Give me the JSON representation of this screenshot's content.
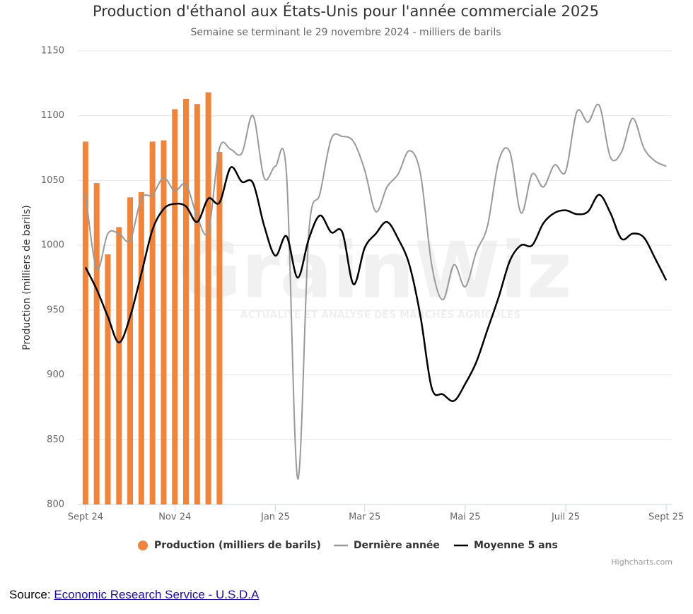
{
  "chart_data": {
    "type": "combo",
    "title": "Production d'éthanol aux États-Unis pour l'année commerciale 2025",
    "subtitle": "Semaine se terminant le 29 novembre 2024 - milliers de barils",
    "y_label": "Production (milliers de barils)",
    "categories": [
      "Sept 24",
      null,
      null,
      null,
      null,
      null,
      null,
      null,
      "Nov 24",
      null,
      null,
      null,
      null,
      null,
      null,
      null,
      null,
      "Jan 25",
      null,
      null,
      null,
      null,
      null,
      null,
      null,
      "Mar 25",
      null,
      null,
      null,
      null,
      null,
      null,
      null,
      null,
      "Mai 25",
      null,
      null,
      null,
      null,
      null,
      null,
      null,
      null,
      "Juil 25",
      null,
      null,
      null,
      null,
      null,
      null,
      null,
      null,
      "Sept 25"
    ],
    "ylim": [
      800,
      1150
    ],
    "yticks": [
      800,
      850,
      900,
      950,
      1000,
      1050,
      1100,
      1150
    ],
    "grid": true,
    "series": [
      {
        "name": "Production (milliers de barils)",
        "type": "bar",
        "color": "#f0843a",
        "values": [
          1080,
          1048,
          993,
          1014,
          1037,
          1041,
          1080,
          1081,
          1105,
          1113,
          1109,
          1118,
          1072,
          null,
          null,
          null,
          null,
          null,
          null,
          null,
          null,
          null,
          null,
          null,
          null,
          null,
          null,
          null,
          null,
          null,
          null,
          null,
          null,
          null,
          null,
          null,
          null,
          null,
          null,
          null,
          null,
          null,
          null,
          null,
          null,
          null,
          null,
          null,
          null,
          null,
          null,
          null,
          null
        ]
      },
      {
        "name": "Dernière année",
        "type": "line",
        "color": "#999999",
        "values": [
          1040,
          982,
          1009,
          1009,
          1004,
          1036,
          1039,
          1052,
          1042,
          1047,
          1022,
          1011,
          1075,
          1074,
          1071,
          1100,
          1052,
          1061,
          1055,
          820,
          1010,
          1040,
          1082,
          1084,
          1080,
          1058,
          1026,
          1045,
          1055,
          1073,
          1055,
          985,
          958,
          985,
          968,
          995,
          1015,
          1065,
          1072,
          1025,
          1055,
          1045,
          1062,
          1057,
          1103,
          1095,
          1108,
          1068,
          1072,
          1098,
          1075,
          1065,
          1061
        ]
      },
      {
        "name": "Moyenne 5 ans",
        "type": "line",
        "color": "#000000",
        "values": [
          983,
          966,
          945,
          925,
          945,
          978,
          1012,
          1028,
          1032,
          1030,
          1018,
          1036,
          1033,
          1060,
          1049,
          1048,
          1015,
          992,
          1007,
          975,
          1005,
          1023,
          1010,
          1010,
          970,
          998,
          1009,
          1018,
          1005,
          985,
          945,
          890,
          885,
          880,
          893,
          910,
          935,
          960,
          988,
          1000,
          1000,
          1017,
          1025,
          1027,
          1024,
          1026,
          1039,
          1025,
          1005,
          1009,
          1006,
          990,
          973
        ]
      }
    ],
    "credits": "Highcharts.com",
    "watermark": {
      "logo": "GrainWiz",
      "tagline": "ACTUALITÉ ET ANALYSE DES MARCHÉS AGRICOLES"
    }
  },
  "source": {
    "label": "Source:",
    "link": "Economic Research Service - U.S.D.A"
  }
}
